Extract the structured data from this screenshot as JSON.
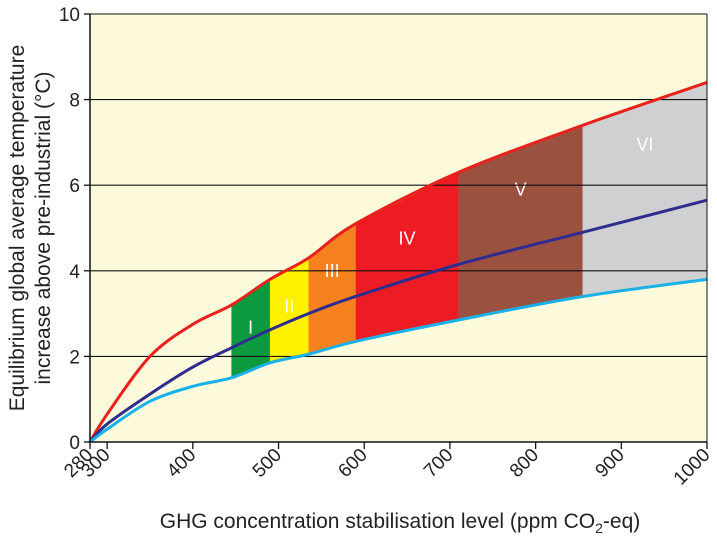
{
  "chart_data": {
    "type": "area",
    "xlabel_main": "GHG concentration stabilisation level (ppm CO",
    "xlabel_sub": "2",
    "xlabel_end": "-eq)",
    "ylabel_line1": "Equilibrium global average temperature",
    "ylabel_line2": "increase above pre-industrial (°C)",
    "xlim": [
      280,
      1000
    ],
    "ylim": [
      0,
      10
    ],
    "x_ticks": [
      280,
      300,
      400,
      500,
      600,
      700,
      800,
      900,
      1000
    ],
    "y_ticks": [
      0,
      2,
      4,
      6,
      8,
      10
    ],
    "grid_y": [
      2,
      4,
      6,
      8
    ],
    "x": [
      280,
      300,
      350,
      400,
      445,
      490,
      535,
      590,
      710,
      855,
      1000
    ],
    "series": [
      {
        "key": "upper",
        "color": "#e8211c",
        "values": [
          0,
          0.65,
          2.0,
          2.75,
          3.2,
          3.8,
          4.3,
          5.1,
          6.3,
          7.4,
          8.4
        ]
      },
      {
        "key": "middle",
        "color": "#2e2d8f",
        "values": [
          0,
          0.42,
          1.12,
          1.75,
          2.2,
          2.62,
          3.0,
          3.4,
          4.15,
          4.9,
          5.65
        ]
      },
      {
        "key": "lower",
        "color": "#1ab0e8",
        "values": [
          0,
          0.3,
          0.95,
          1.3,
          1.5,
          1.85,
          2.05,
          2.35,
          2.85,
          3.4,
          3.8
        ]
      }
    ],
    "bands": [
      {
        "label": "I",
        "x0": 445,
        "x1": 490,
        "color": "#0d9a3f"
      },
      {
        "label": "II",
        "x0": 490,
        "x1": 535,
        "color": "#fff200"
      },
      {
        "label": "III",
        "x0": 535,
        "x1": 590,
        "color": "#f5821f"
      },
      {
        "label": "IV",
        "x0": 590,
        "x1": 710,
        "color": "#ed1c24"
      },
      {
        "label": "V",
        "x0": 710,
        "x1": 855,
        "color": "#9a5140"
      },
      {
        "label": "VI",
        "x0": 855,
        "x1": 1000,
        "color": "#cfd0d2"
      }
    ],
    "grid": true,
    "background": "#fdfbdc",
    "gridline_color": "#111111"
  }
}
